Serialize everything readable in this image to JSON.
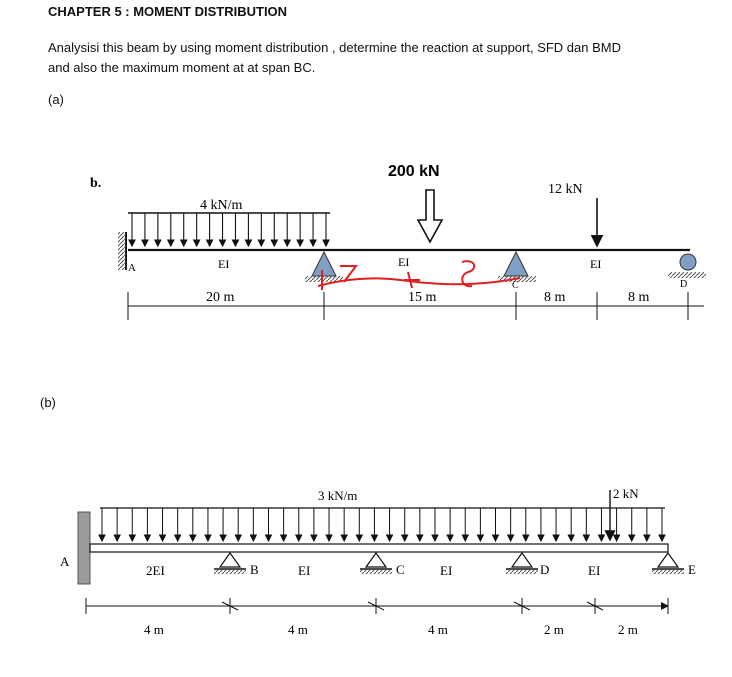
{
  "header": {
    "chapter": "CHAPTER 5 : MOMENT DISTRIBUTION",
    "question_line1": "Analysisi this beam by using moment distribution , determine the reaction at support, SFD dan BMD",
    "question_line2": "and also the maximum moment at at span BC.",
    "part_a": "(a)",
    "part_b": "(b)"
  },
  "figure_a": {
    "label": "b.",
    "udl": "4 kN/m",
    "point_load_1": "200 kN",
    "point_load_2": "12 kN",
    "support_a": "A",
    "support_c": "C",
    "support_d": "D",
    "ei_1": "EI",
    "ei_2": "EI",
    "ei_3": "EI",
    "span_1": "20 m",
    "span_2": "15 m",
    "span_3": "8 m",
    "span_4": "8 m",
    "handwritten_1": "7",
    "handwritten_2": "8"
  },
  "figure_b": {
    "udl": "3 kN/m",
    "point_load": "2 kN",
    "support_a": "A",
    "support_b": "B",
    "support_c": "C",
    "support_d": "D",
    "support_e": "E",
    "ei_1": "2EI",
    "ei_2": "EI",
    "ei_3": "EI",
    "ei_4": "EI",
    "span_1": "4 m",
    "span_2": "4 m",
    "span_3": "4 m",
    "span_4": "2 m",
    "span_5": "2 m"
  }
}
